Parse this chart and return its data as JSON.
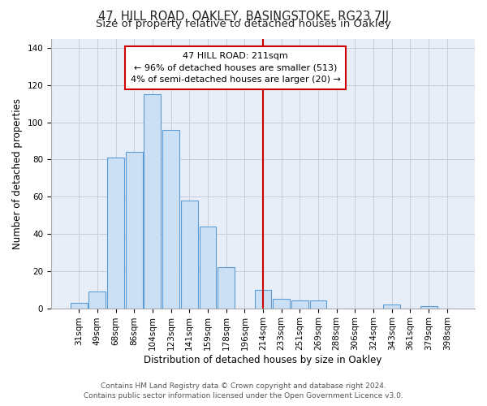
{
  "title": "47, HILL ROAD, OAKLEY, BASINGSTOKE, RG23 7JJ",
  "subtitle": "Size of property relative to detached houses in Oakley",
  "xlabel": "Distribution of detached houses by size in Oakley",
  "ylabel": "Number of detached properties",
  "bar_labels": [
    "31sqm",
    "49sqm",
    "68sqm",
    "86sqm",
    "104sqm",
    "123sqm",
    "141sqm",
    "159sqm",
    "178sqm",
    "196sqm",
    "214sqm",
    "233sqm",
    "251sqm",
    "269sqm",
    "288sqm",
    "306sqm",
    "324sqm",
    "343sqm",
    "361sqm",
    "379sqm",
    "398sqm"
  ],
  "bar_values": [
    3,
    9,
    81,
    84,
    115,
    96,
    58,
    44,
    22,
    0,
    10,
    5,
    4,
    4,
    0,
    0,
    0,
    2,
    0,
    1,
    0
  ],
  "bar_color": "#cce0f5",
  "bar_edge_color": "#5b9bd5",
  "vline_idx": 10,
  "vline_color": "#cc0000",
  "annotation_title": "47 HILL ROAD: 211sqm",
  "annotation_line1": "← 96% of detached houses are smaller (513)",
  "annotation_line2": "4% of semi-detached houses are larger (20) →",
  "annotation_box_color": "#ffffff",
  "annotation_box_edge": "#cc0000",
  "footer1": "Contains HM Land Registry data © Crown copyright and database right 2024.",
  "footer2": "Contains public sector information licensed under the Open Government Licence v3.0.",
  "ylim": [
    0,
    145
  ],
  "yticks": [
    0,
    20,
    40,
    60,
    80,
    100,
    120,
    140
  ],
  "bg_color": "#e8eef8",
  "grid_color": "#c5cfe0",
  "title_fontsize": 10.5,
  "subtitle_fontsize": 9.5,
  "axis_label_fontsize": 8.5,
  "tick_fontsize": 7.5,
  "annot_fontsize": 8,
  "footer_fontsize": 6.5
}
